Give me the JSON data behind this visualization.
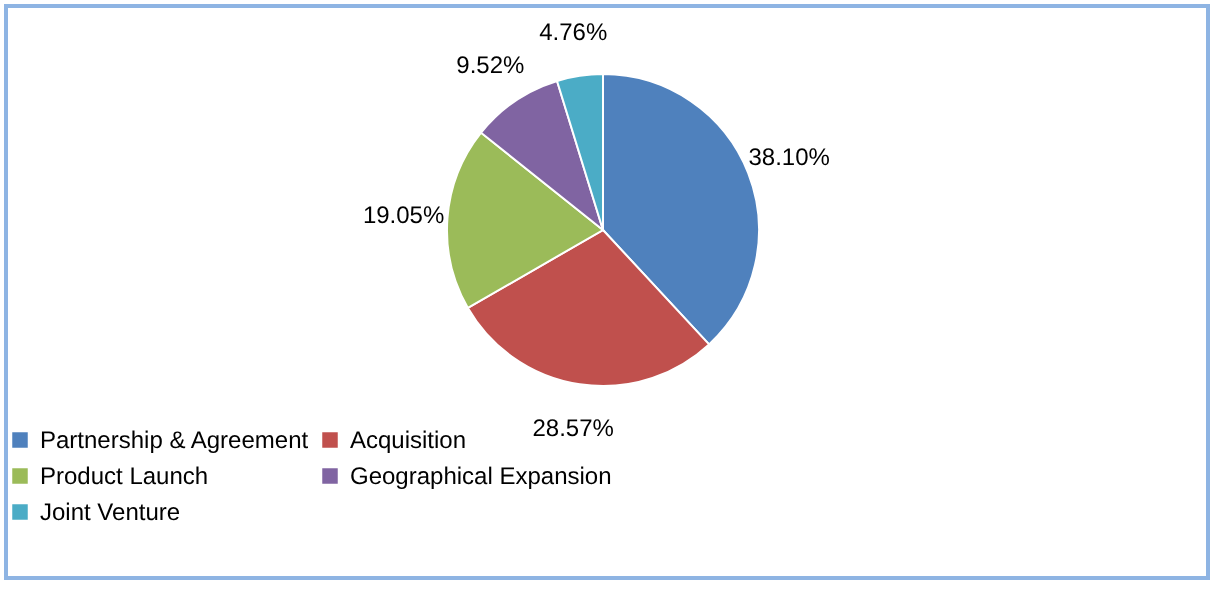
{
  "chart_data": {
    "type": "pie",
    "categories": [
      "Partnership & Agreement",
      "Acquisition",
      "Product Launch",
      "Geographical Expansion",
      "Joint Venture"
    ],
    "values": [
      38.1,
      28.57,
      19.05,
      9.52,
      4.76
    ],
    "colors": [
      "#4f81bd",
      "#c0504d",
      "#9bbb59",
      "#8064a2",
      "#4bacc6"
    ],
    "value_labels": [
      "38.10%",
      "28.57%",
      "19.05%",
      "9.52%",
      "4.76%"
    ],
    "legend": "bottom"
  }
}
